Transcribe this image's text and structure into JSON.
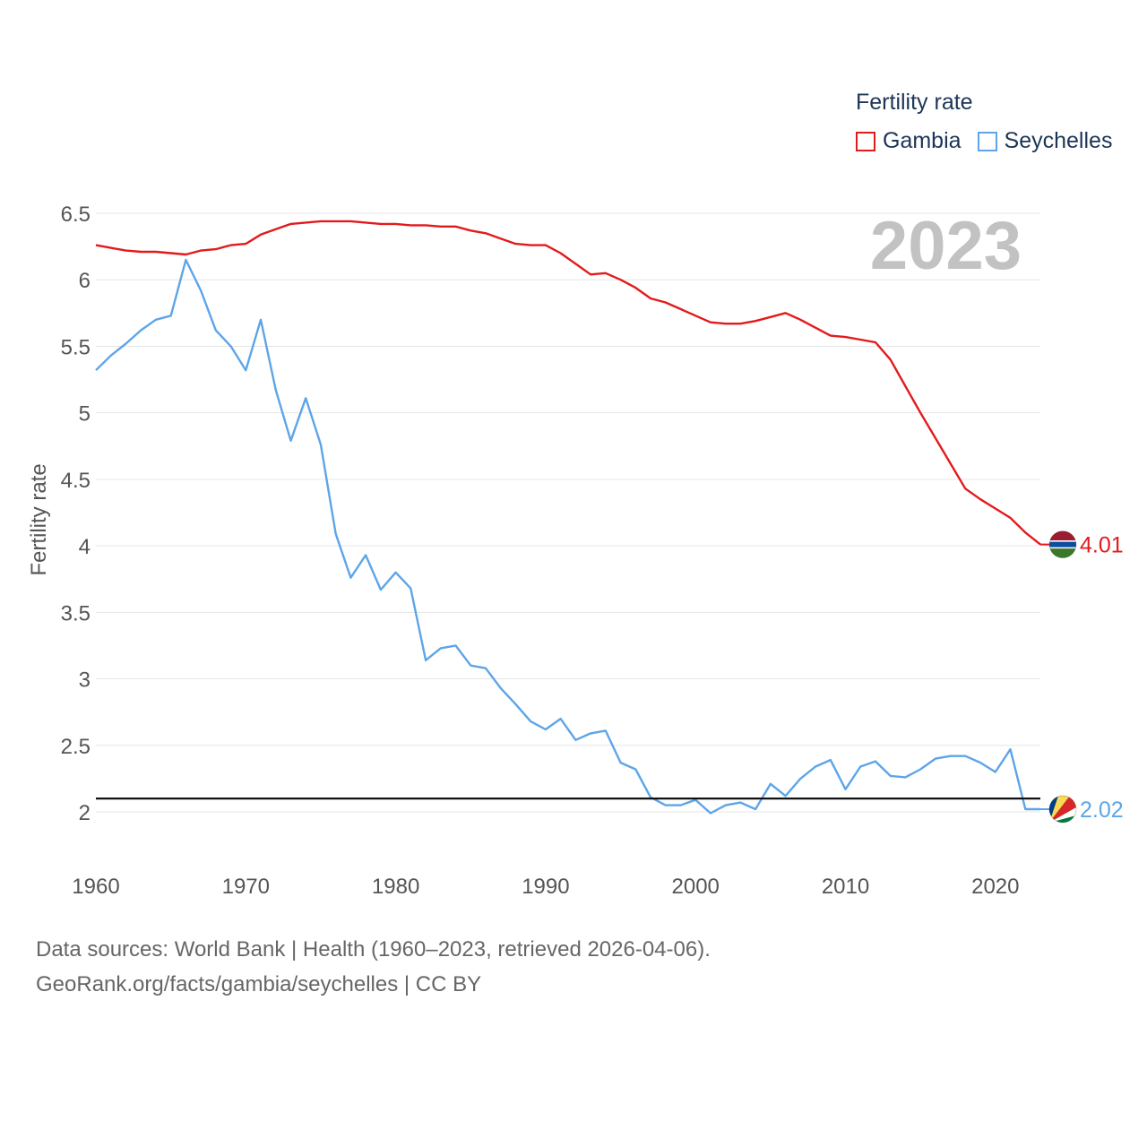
{
  "legend": {
    "title": "Fertility rate",
    "items": [
      {
        "name": "Gambia",
        "color": "#e31a1c"
      },
      {
        "name": "Seychelles",
        "color": "#5da5e8"
      }
    ]
  },
  "source": {
    "line1": "Data sources: World Bank | Health (1960–2023, retrieved 2026-04-06).",
    "line2": "GeoRank.org/facts/gambia/seychelles | CC BY"
  },
  "chart_data": {
    "type": "line",
    "title": "",
    "year_label": "2023",
    "xlabel": "",
    "ylabel": "Fertility rate",
    "xlim": [
      1960,
      2023
    ],
    "ylim": [
      1.8,
      6.5
    ],
    "x_ticks": [
      1960,
      1970,
      1980,
      1990,
      2000,
      2010,
      2020
    ],
    "y_ticks": [
      {
        "value": 2,
        "label": "2"
      },
      {
        "value": 2.5,
        "label": "2.5"
      },
      {
        "value": 3,
        "label": "3"
      },
      {
        "value": 3.5,
        "label": "3.5"
      },
      {
        "value": 4,
        "label": "4"
      },
      {
        "value": 4.5,
        "label": "4.5"
      },
      {
        "value": 5,
        "label": "5"
      },
      {
        "value": 5.5,
        "label": "5.5"
      },
      {
        "value": 6,
        "label": "6"
      },
      {
        "value": 6.5,
        "label": "6.5"
      }
    ],
    "reference_line": 2.1,
    "series": [
      {
        "name": "Gambia",
        "color": "#e31a1c",
        "end_label": "4.01",
        "flag": "gambia",
        "values": [
          6.26,
          6.24,
          6.22,
          6.21,
          6.21,
          6.2,
          6.19,
          6.22,
          6.23,
          6.26,
          6.27,
          6.34,
          6.38,
          6.42,
          6.43,
          6.44,
          6.44,
          6.44,
          6.43,
          6.42,
          6.42,
          6.41,
          6.41,
          6.4,
          6.4,
          6.37,
          6.35,
          6.31,
          6.27,
          6.26,
          6.26,
          6.2,
          6.12,
          6.04,
          6.05,
          6.0,
          5.94,
          5.86,
          5.83,
          5.78,
          5.73,
          5.68,
          5.67,
          5.67,
          5.69,
          5.72,
          5.75,
          5.7,
          5.64,
          5.58,
          5.57,
          5.55,
          5.53,
          5.4,
          5.2,
          5.0,
          4.81,
          4.62,
          4.43,
          4.35,
          4.28,
          4.21,
          4.1,
          4.01
        ]
      },
      {
        "name": "Seychelles",
        "color": "#5da5e8",
        "end_label": "2.02",
        "flag": "seychelles",
        "values": [
          5.32,
          5.43,
          5.52,
          5.62,
          5.7,
          5.73,
          6.15,
          5.92,
          5.62,
          5.5,
          5.32,
          5.7,
          5.17,
          4.79,
          5.11,
          4.76,
          4.09,
          3.76,
          3.93,
          3.67,
          3.8,
          3.68,
          3.14,
          3.23,
          3.25,
          3.1,
          3.08,
          2.93,
          2.81,
          2.68,
          2.62,
          2.7,
          2.54,
          2.59,
          2.61,
          2.37,
          2.32,
          2.11,
          2.05,
          2.05,
          2.09,
          1.99,
          2.05,
          2.07,
          2.02,
          2.21,
          2.12,
          2.25,
          2.34,
          2.39,
          2.17,
          2.34,
          2.38,
          2.27,
          2.26,
          2.32,
          2.4,
          2.42,
          2.42,
          2.37,
          2.3,
          2.47,
          2.02,
          2.02
        ]
      }
    ]
  }
}
